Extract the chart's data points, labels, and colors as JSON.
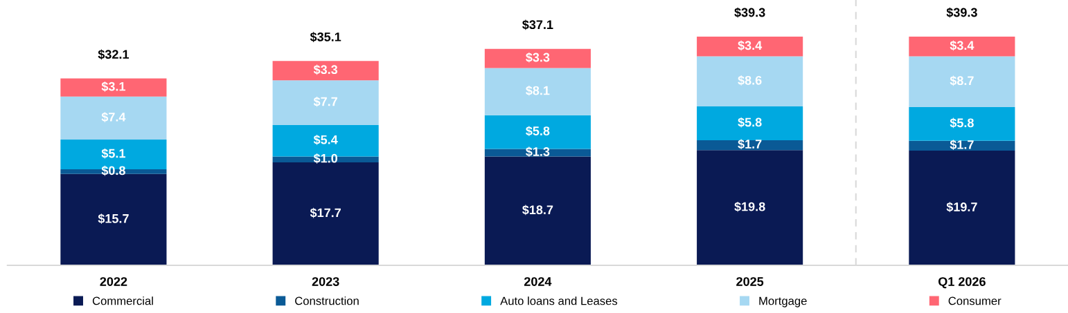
{
  "chart_data": {
    "type": "bar",
    "stacked": true,
    "categories": [
      "2022",
      "2023",
      "2024",
      "2025",
      "Q1 2026"
    ],
    "series": [
      {
        "name": "Commercial",
        "color": "#0a1a54",
        "values": [
          15.7,
          17.7,
          18.7,
          19.8,
          19.7
        ],
        "value_labels": [
          "$15.7",
          "$17.7",
          "$18.7",
          "$19.8",
          "$19.7"
        ]
      },
      {
        "name": "Construction",
        "color": "#0a5a96",
        "values": [
          0.8,
          1.0,
          1.3,
          1.7,
          1.7
        ],
        "value_labels": [
          "$0.8",
          "$1.0",
          "$1.3",
          "$1.7",
          "$1.7"
        ]
      },
      {
        "name": "Auto loans and Leases",
        "color": "#00a9e0",
        "values": [
          5.1,
          5.4,
          5.8,
          5.8,
          5.8
        ],
        "value_labels": [
          "$5.1",
          "$5.4",
          "$5.8",
          "$5.8",
          "$5.8"
        ]
      },
      {
        "name": "Mortgage",
        "color": "#a6d8f2",
        "values": [
          7.4,
          7.7,
          8.1,
          8.6,
          8.7
        ],
        "value_labels": [
          "$7.4",
          "$7.7",
          "$8.1",
          "$8.6",
          "$8.7"
        ]
      },
      {
        "name": "Consumer",
        "color": "#ff6673",
        "values": [
          3.1,
          3.3,
          3.3,
          3.4,
          3.4
        ],
        "value_labels": [
          "$3.1",
          "$3.3",
          "$3.3",
          "$3.4",
          "$3.4"
        ]
      }
    ],
    "totals": [
      "$32.1",
      "$35.1",
      "$37.1",
      "$39.3",
      "$39.3"
    ],
    "tick_labels": "x",
    "grid": false,
    "legend": "bottom"
  }
}
